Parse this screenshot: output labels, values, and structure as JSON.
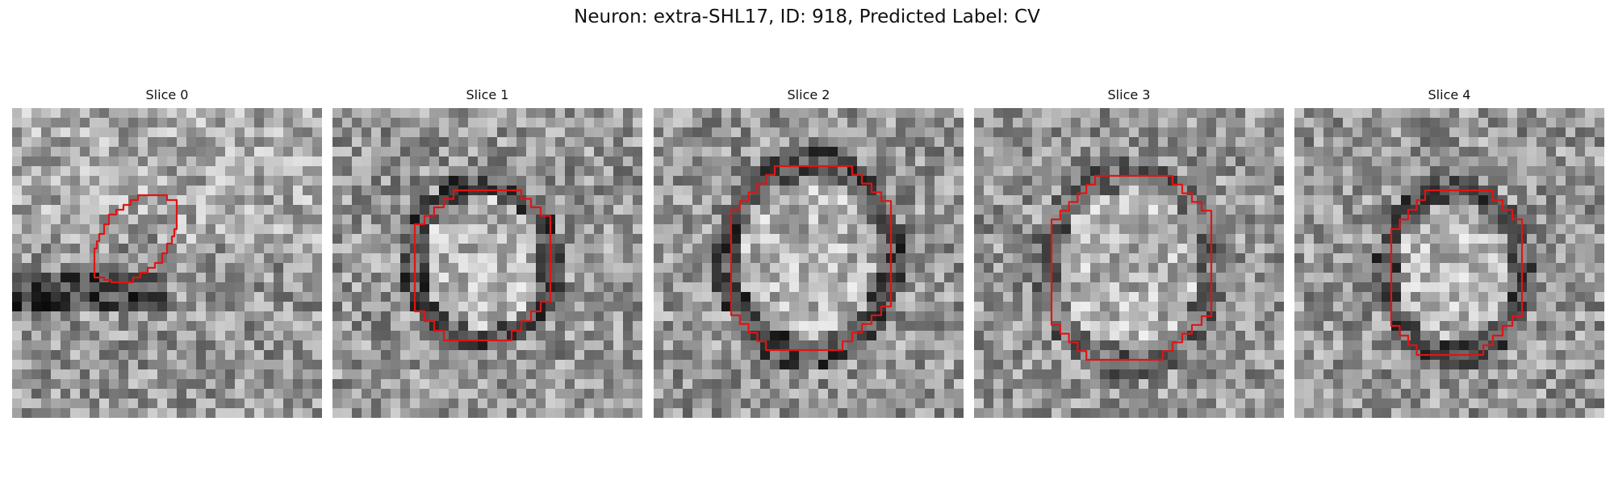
{
  "figure": {
    "title": "Neuron: extra-SHL17, ID: 918, Predicted Label: CV"
  },
  "contour_color": "#e01414",
  "slices": [
    {
      "title": "Slice 0"
    },
    {
      "title": "Slice 1"
    },
    {
      "title": "Slice 2"
    },
    {
      "title": "Slice 3"
    },
    {
      "title": "Slice 4"
    }
  ]
}
